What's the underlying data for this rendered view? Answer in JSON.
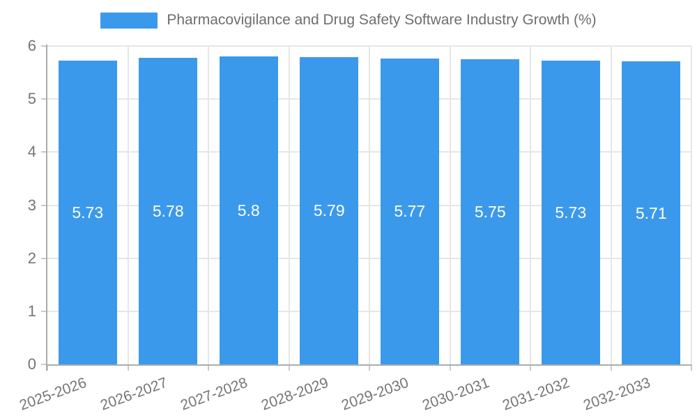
{
  "chart_data": {
    "type": "bar",
    "title": "Pharmacovigilance and Drug Safety Software Industry Growth (%)",
    "categories": [
      "2025-2026",
      "2026-2027",
      "2027-2028",
      "2028-2029",
      "2029-2030",
      "2030-2031",
      "2031-2032",
      "2032-2033"
    ],
    "series": [
      {
        "name": "Pharmacovigilance and Drug Safety Software Industry Growth (%)",
        "values": [
          5.73,
          5.78,
          5.8,
          5.79,
          5.77,
          5.75,
          5.73,
          5.71
        ]
      }
    ],
    "data_labels": [
      "5.73",
      "5.78",
      "5.8",
      "5.79",
      "5.77",
      "5.75",
      "5.73",
      "5.71"
    ],
    "xlabel": "",
    "ylabel": "",
    "ylim": [
      0,
      6
    ],
    "yticks": [
      0,
      1,
      2,
      3,
      4,
      5,
      6
    ],
    "grid": "on",
    "legend_position": "top-center",
    "colors": {
      "bar": "#3b99eb",
      "bar_label": "#ffffff",
      "grid": "#e6e6e6",
      "axis": "#ababab",
      "tick": "#c9c9c9",
      "text": "#757575",
      "title": "#6e6e6e",
      "background": "#ffffff"
    }
  }
}
